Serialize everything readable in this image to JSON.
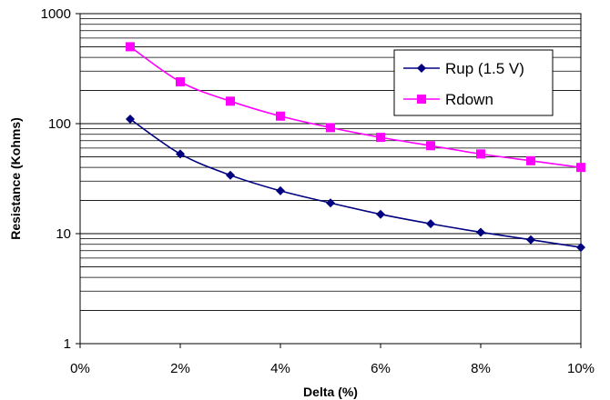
{
  "chart_data": {
    "type": "line",
    "title": "",
    "xlabel": "Delta (%)",
    "ylabel": "Resistance (Kohms)",
    "x": [
      1,
      2,
      3,
      4,
      5,
      6,
      7,
      8,
      9,
      10
    ],
    "xlim": [
      0,
      10
    ],
    "x_ticks": [
      "0%",
      "2%",
      "4%",
      "6%",
      "8%",
      "10%"
    ],
    "ylim": [
      1,
      1000
    ],
    "y_scale": "log",
    "y_ticks": [
      "1",
      "10",
      "100",
      "1000"
    ],
    "grid": "horizontal major and minor",
    "legend_position": "top-right",
    "series": [
      {
        "name": "Rup (1.5 V)",
        "color": "#000080",
        "marker": "diamond",
        "values": [
          110,
          53,
          34,
          24.5,
          19,
          15,
          12.3,
          10.3,
          8.8,
          7.5
        ]
      },
      {
        "name": "Rdown",
        "color": "#ff00ff",
        "marker": "square",
        "values": [
          500,
          240,
          160,
          117,
          92,
          75,
          63,
          53,
          46,
          40
        ]
      }
    ]
  }
}
